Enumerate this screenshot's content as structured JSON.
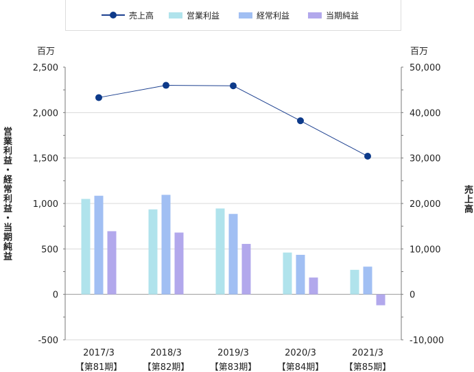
{
  "chart_data": {
    "type": "bar",
    "categories": [
      {
        "year": "2017/3",
        "period": "【第81期】"
      },
      {
        "year": "2018/3",
        "period": "【第82期】"
      },
      {
        "year": "2019/3",
        "period": "【第83期】"
      },
      {
        "year": "2020/3",
        "period": "【第84期】"
      },
      {
        "year": "2021/3",
        "period": "【第85期】"
      }
    ],
    "series": [
      {
        "name": "営業利益",
        "axis": "left",
        "kind": "bar",
        "color": "#b0e3ec",
        "values": [
          1050,
          935,
          945,
          460,
          270
        ]
      },
      {
        "name": "経常利益",
        "axis": "left",
        "kind": "bar",
        "color": "#a1bff3",
        "values": [
          1085,
          1095,
          885,
          435,
          305
        ]
      },
      {
        "name": "当期純益",
        "axis": "left",
        "kind": "bar",
        "color": "#b2a8ec",
        "values": [
          695,
          680,
          555,
          185,
          -120
        ]
      },
      {
        "name": "売上高",
        "axis": "right",
        "kind": "line",
        "color": "#0d3a8a",
        "values": [
          43300,
          46000,
          45900,
          38200,
          30400
        ]
      }
    ],
    "left_axis": {
      "label": "営業利益・経常利益・当期純益",
      "unit": "百万",
      "range": [
        -500,
        2500
      ],
      "ticks": [
        "-500",
        "0",
        "500",
        "1,000",
        "1,500",
        "2,000",
        "2,500"
      ],
      "tick_values": [
        -500,
        0,
        500,
        1000,
        1500,
        2000,
        2500
      ]
    },
    "right_axis": {
      "label": "売上高",
      "unit": "百万",
      "range": [
        -10000,
        50000
      ],
      "ticks": [
        "-10,000",
        "0",
        "10,000",
        "20,000",
        "30,000",
        "40,000",
        "50,000"
      ],
      "tick_values": [
        -10000,
        0,
        10000,
        20000,
        30000,
        40000,
        50000
      ]
    },
    "legend": {
      "placement": "top",
      "items": [
        "売上高",
        "営業利益",
        "経常利益",
        "当期純益"
      ]
    },
    "grid": true
  }
}
